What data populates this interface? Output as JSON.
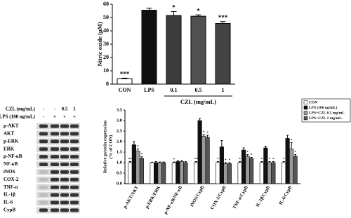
{
  "chart_data": [
    {
      "type": "bar",
      "y_label": "Nitric oxide (μM)",
      "x_label": "CZL (mg/mL)",
      "categories": [
        "CON",
        "LPS",
        "0.1",
        "0.5",
        "1"
      ],
      "values": [
        4,
        55.5,
        51.5,
        51,
        45.5
      ],
      "errors": [
        0.5,
        1.5,
        3,
        1,
        1.5
      ],
      "stars": [
        "***",
        null,
        "*",
        "*",
        "***"
      ],
      "colors": [
        "#ffffff",
        "#111111",
        "#3c3c3c",
        "#505050",
        "#444444"
      ],
      "ylim": [
        0,
        60
      ],
      "yticks": [
        0,
        10,
        20,
        30,
        40,
        50,
        60
      ]
    },
    {
      "type": "grouped_bar",
      "y_label": [
        "Relative protein expression",
        "(% of CON)"
      ],
      "categories": [
        "p-AKT/AKT",
        "p-ERK/ERK",
        "p-NF-κB/NF-κB",
        "iNOS/CypB",
        "COX-2/CypB",
        "TNF-α/CypB",
        "IL-1β/CypB",
        "IL-6/CypB"
      ],
      "series": [
        {
          "name": "CON",
          "color": "#ffffff",
          "values": [
            1.0,
            1.0,
            1.0,
            1.0,
            1.0,
            1.0,
            1.0,
            1.0
          ],
          "errors": [
            0.05,
            0.02,
            0.03,
            0.05,
            0.05,
            0.05,
            0.05,
            0.05
          ],
          "stars": [
            "**",
            null,
            "*",
            "**",
            "*",
            "*",
            "*",
            "*"
          ]
        },
        {
          "name": "LPS (100 ng/mL)",
          "color": "#111111",
          "values": [
            1.85,
            1.0,
            1.05,
            3.0,
            1.75,
            1.6,
            1.7,
            2.15
          ],
          "errors": [
            0.15,
            0.05,
            0.05,
            0.1,
            0.3,
            0.1,
            0.08,
            0.15
          ],
          "stars": [
            null,
            null,
            null,
            null,
            null,
            null,
            null,
            null
          ]
        },
        {
          "name": "LPS+CZL 0.5 mg/mL",
          "color": "#9a9a9a",
          "values": [
            1.55,
            1.0,
            1.05,
            2.25,
            0.95,
            1.3,
            1.0,
            1.65
          ],
          "errors": [
            0.1,
            0.03,
            0.05,
            0.08,
            0.05,
            0.08,
            0.05,
            0.3
          ],
          "stars": [
            "*",
            null,
            null,
            "*",
            "*",
            "*",
            "*",
            "*"
          ]
        },
        {
          "name": "LPS+CZL 1 mg/mL.",
          "color": "#555555",
          "values": [
            1.2,
            1.0,
            1.0,
            2.2,
            0.95,
            1.2,
            1.0,
            1.3
          ],
          "errors": [
            0.08,
            0.03,
            0.05,
            0.1,
            0.05,
            0.05,
            0.05,
            0.08
          ],
          "stars": [
            "*",
            null,
            null,
            "*",
            "*",
            "*",
            "*",
            "*"
          ]
        }
      ],
      "ylim": [
        0,
        3.5
      ],
      "yticks": [
        {
          "value": 0,
          "label": "0.0"
        },
        0.5,
        {
          "value": 1,
          "label": "1.0"
        },
        1.5,
        {
          "value": 2,
          "label": "2.0"
        },
        2.5,
        {
          "value": 3,
          "label": "3.0"
        },
        3.5
      ]
    }
  ],
  "blot": {
    "treatments": [
      {
        "label": "CZL (mg/mL)",
        "lanes": [
          "-",
          "-",
          "0.5",
          "1"
        ]
      },
      {
        "label": "LPS (100 ng/mL)",
        "lanes": [
          "-",
          "+",
          "+",
          "+"
        ]
      }
    ],
    "rows": [
      "p-AKT",
      "AKT",
      "p-ERK",
      "ERK",
      "p-NF-κB",
      "NF-κB",
      "iNOS",
      "COX-2",
      "TNF-α",
      "IL-1β",
      "IL-6",
      "CypB"
    ]
  }
}
